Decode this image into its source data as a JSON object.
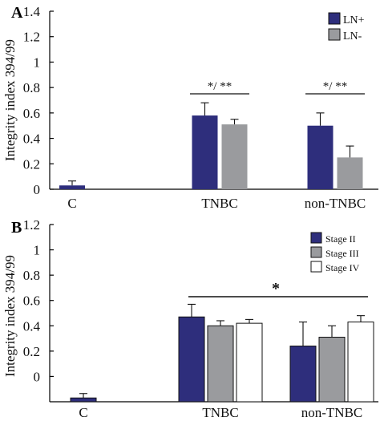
{
  "chart_data": [
    {
      "type": "bar",
      "panel": "A",
      "ylabel": "Integrity index 394/99",
      "ylim": [
        0,
        1.4
      ],
      "yticks": [
        "0",
        "0.2",
        "0.4",
        "0.6",
        "0.8",
        "1",
        "1.2",
        "1.4"
      ],
      "categories": [
        "C",
        "TNBC",
        "non-TNBC"
      ],
      "series": [
        {
          "name": "LN+",
          "color": "#2e2e7c",
          "values": [
            0.03,
            0.58,
            0.5
          ],
          "errors": [
            0.035,
            0.1,
            0.1
          ]
        },
        {
          "name": "LN-",
          "color": "#9a9b9e",
          "values": [
            null,
            0.51,
            0.25
          ],
          "errors": [
            null,
            0.04,
            0.09
          ]
        }
      ],
      "significance": [
        {
          "category": "TNBC",
          "label": "*/ **"
        },
        {
          "category": "non-TNBC",
          "label": "*/ **"
        }
      ],
      "legend": "top-right"
    },
    {
      "type": "bar",
      "panel": "B",
      "ylabel": "Integrity index 394/99",
      "ylim": [
        -0.2,
        1.2
      ],
      "yticks": [
        "0",
        "0.2",
        "0.4",
        "0.6",
        "0.8",
        "1",
        "1.2"
      ],
      "categories": [
        "C",
        "TNBC",
        "non-TNBC"
      ],
      "series": [
        {
          "name": "Stage II",
          "color": "#2e2e7c",
          "values": [
            -0.17,
            0.47,
            0.24
          ],
          "errors": [
            0.035,
            0.1,
            0.19
          ]
        },
        {
          "name": "Stage III",
          "color": "#9a9b9e",
          "values": [
            null,
            0.4,
            0.31
          ],
          "errors": [
            null,
            0.04,
            0.09
          ]
        },
        {
          "name": "Stage IV",
          "color": "#ffffff",
          "values": [
            null,
            0.42,
            0.43
          ],
          "errors": [
            null,
            0.03,
            0.05
          ]
        }
      ],
      "significance": [
        {
          "span": [
            "TNBC",
            "non-TNBC"
          ],
          "label": "*"
        }
      ],
      "legend": "top-right"
    }
  ]
}
